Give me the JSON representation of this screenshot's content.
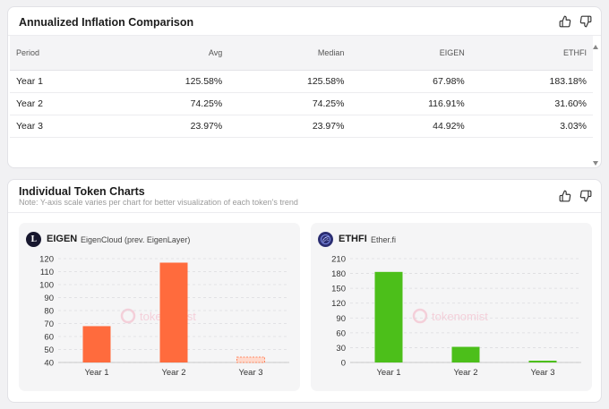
{
  "inflation": {
    "title": "Annualized Inflation Comparison",
    "columns": [
      "Period",
      "Avg",
      "Median",
      "EIGEN",
      "ETHFI"
    ],
    "rows": [
      [
        "Year 1",
        "125.58%",
        "125.58%",
        "67.98%",
        "183.18%"
      ],
      [
        "Year 2",
        "74.25%",
        "74.25%",
        "116.91%",
        "31.60%"
      ],
      [
        "Year 3",
        "23.97%",
        "23.97%",
        "44.92%",
        "3.03%"
      ]
    ]
  },
  "token_charts": {
    "title": "Individual Token Charts",
    "note": "Note: Y-axis scale varies per chart for better visualization of each token's trend",
    "watermark": "tokenomist"
  },
  "icons": {
    "like": "thumbs-up-icon",
    "dislike": "thumbs-down-icon"
  },
  "colors": {
    "eigen_bar": "#ff6b3d",
    "ethfi_bar": "#4cbf1a",
    "grid": "#dcdcdf"
  },
  "chart_data": [
    {
      "type": "bar",
      "token": "EIGEN",
      "name": "EigenCloud (prev. EigenLayer)",
      "logo_letter": "L",
      "categories": [
        "Year 1",
        "Year 2",
        "Year 3"
      ],
      "values": [
        67.98,
        116.91,
        44.92
      ],
      "ylim": [
        40,
        120
      ],
      "yticks": [
        40,
        50,
        60,
        70,
        80,
        90,
        100,
        110,
        120
      ],
      "grid": true,
      "color": "#ff6b3d"
    },
    {
      "type": "bar",
      "token": "ETHFI",
      "name": "Ether.fi",
      "categories": [
        "Year 1",
        "Year 2",
        "Year 3"
      ],
      "values": [
        183.18,
        31.6,
        3.03
      ],
      "ylim": [
        0,
        210
      ],
      "yticks": [
        0,
        30,
        60,
        90,
        120,
        150,
        180,
        210
      ],
      "grid": true,
      "color": "#4cbf1a"
    }
  ]
}
